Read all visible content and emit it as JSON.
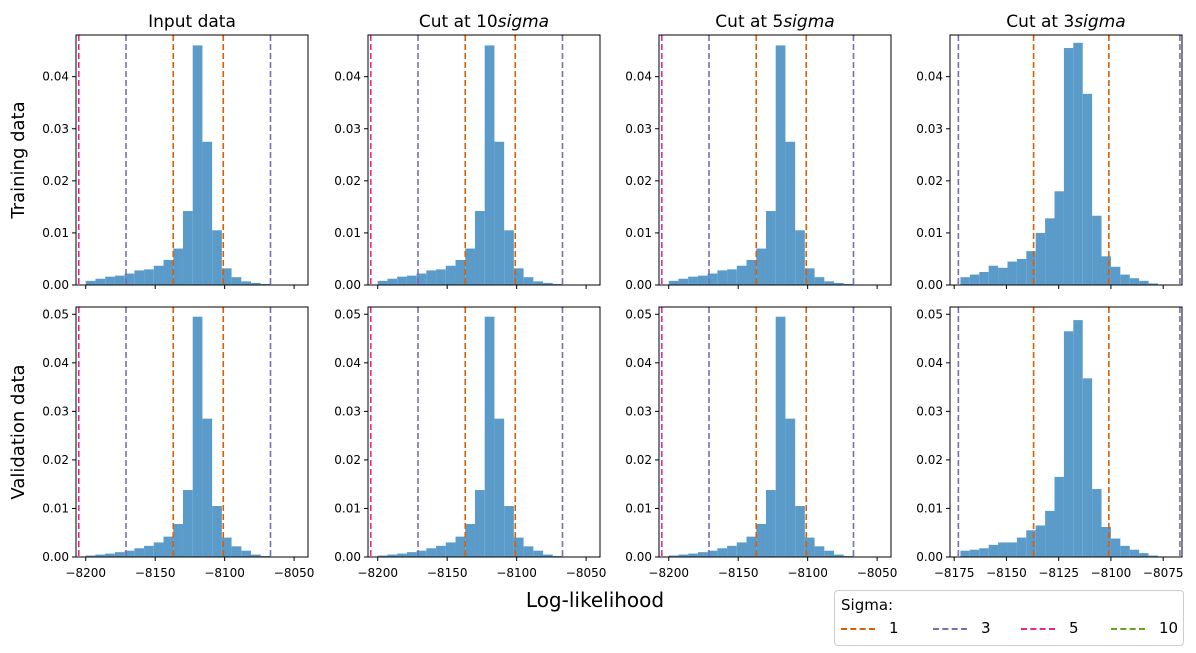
{
  "figure": {
    "xlabel": "Log-likelihood",
    "row_labels": [
      "Training data",
      "Validation data"
    ],
    "col_titles": [
      "Input data",
      "Cut at 10",
      "Cut at 5",
      "Cut at 3"
    ],
    "col_title_suffix": "sigma",
    "colors": {
      "bar": "#5b9bc9",
      "sigma1": "#d95f02",
      "sigma3": "#7570b3",
      "sigma5": "#e7298a",
      "sigma10": "#66a61e"
    }
  },
  "legend": {
    "title": "Sigma:",
    "items": [
      {
        "label": "1",
        "color": "#d95f02"
      },
      {
        "label": "3",
        "color": "#7570b3"
      },
      {
        "label": "5",
        "color": "#e7298a"
      },
      {
        "label": "10",
        "color": "#66a61e"
      }
    ]
  },
  "chart_data": [
    {
      "type": "bar",
      "title": "Input data",
      "ylabel": "Training data",
      "xlim": [
        -8207,
        -8040
      ],
      "ylim": [
        0,
        0.048
      ],
      "xticks": [
        -8200,
        -8150,
        -8100,
        -8050
      ],
      "yticks": [
        0,
        0.01,
        0.02,
        0.03,
        0.04
      ],
      "bins": [
        [
          -8200,
          -8193,
          0.0008
        ],
        [
          -8193,
          -8186,
          0.0012
        ],
        [
          -8186,
          -8179,
          0.0016
        ],
        [
          -8179,
          -8172,
          0.0018
        ],
        [
          -8172,
          -8165,
          0.0022
        ],
        [
          -8165,
          -8158,
          0.0028
        ],
        [
          -8158,
          -8151,
          0.003
        ],
        [
          -8151,
          -8144,
          0.0037
        ],
        [
          -8144,
          -8137,
          0.0048
        ],
        [
          -8137,
          -8130,
          0.007
        ],
        [
          -8130,
          -8123,
          0.0142
        ],
        [
          -8123,
          -8116,
          0.046
        ],
        [
          -8116,
          -8109,
          0.0275
        ],
        [
          -8109,
          -8102,
          0.0105
        ],
        [
          -8102,
          -8095,
          0.0032
        ],
        [
          -8095,
          -8088,
          0.0015
        ],
        [
          -8088,
          -8081,
          0.0007
        ],
        [
          -8081,
          -8074,
          0.0004
        ],
        [
          -8074,
          -8067,
          0.0002
        ]
      ],
      "sigma_lines": {
        "1": [
          -8137,
          -8101
        ],
        "3": [
          -8171,
          -8067
        ],
        "5": [
          -8205
        ],
        "10": []
      }
    },
    {
      "type": "bar",
      "title": "Cut at 10sigma",
      "xlim": [
        -8207,
        -8040
      ],
      "ylim": [
        0,
        0.048
      ],
      "xticks": [
        -8200,
        -8150,
        -8100,
        -8050
      ],
      "yticks": [
        0,
        0.01,
        0.02,
        0.03,
        0.04
      ],
      "bins": [
        [
          -8200,
          -8193,
          0.0008
        ],
        [
          -8193,
          -8186,
          0.0012
        ],
        [
          -8186,
          -8179,
          0.0016
        ],
        [
          -8179,
          -8172,
          0.0018
        ],
        [
          -8172,
          -8165,
          0.0022
        ],
        [
          -8165,
          -8158,
          0.0028
        ],
        [
          -8158,
          -8151,
          0.003
        ],
        [
          -8151,
          -8144,
          0.0037
        ],
        [
          -8144,
          -8137,
          0.0048
        ],
        [
          -8137,
          -8130,
          0.007
        ],
        [
          -8130,
          -8123,
          0.0142
        ],
        [
          -8123,
          -8116,
          0.046
        ],
        [
          -8116,
          -8109,
          0.0275
        ],
        [
          -8109,
          -8102,
          0.0105
        ],
        [
          -8102,
          -8095,
          0.0032
        ],
        [
          -8095,
          -8088,
          0.0015
        ],
        [
          -8088,
          -8081,
          0.0007
        ],
        [
          -8081,
          -8074,
          0.0004
        ],
        [
          -8074,
          -8067,
          0.0002
        ]
      ],
      "sigma_lines": {
        "1": [
          -8137,
          -8101
        ],
        "3": [
          -8171,
          -8067
        ],
        "5": [
          -8205
        ],
        "10": []
      }
    },
    {
      "type": "bar",
      "title": "Cut at 5sigma",
      "xlim": [
        -8207,
        -8040
      ],
      "ylim": [
        0,
        0.048
      ],
      "xticks": [
        -8200,
        -8150,
        -8100,
        -8050
      ],
      "yticks": [
        0,
        0.01,
        0.02,
        0.03,
        0.04
      ],
      "bins": [
        [
          -8200,
          -8193,
          0.0008
        ],
        [
          -8193,
          -8186,
          0.0012
        ],
        [
          -8186,
          -8179,
          0.0016
        ],
        [
          -8179,
          -8172,
          0.0018
        ],
        [
          -8172,
          -8165,
          0.0022
        ],
        [
          -8165,
          -8158,
          0.0028
        ],
        [
          -8158,
          -8151,
          0.003
        ],
        [
          -8151,
          -8144,
          0.0037
        ],
        [
          -8144,
          -8137,
          0.0048
        ],
        [
          -8137,
          -8130,
          0.007
        ],
        [
          -8130,
          -8123,
          0.0142
        ],
        [
          -8123,
          -8116,
          0.046
        ],
        [
          -8116,
          -8109,
          0.0275
        ],
        [
          -8109,
          -8102,
          0.0105
        ],
        [
          -8102,
          -8095,
          0.0032
        ],
        [
          -8095,
          -8088,
          0.0015
        ],
        [
          -8088,
          -8081,
          0.0007
        ],
        [
          -8081,
          -8074,
          0.0004
        ],
        [
          -8074,
          -8067,
          0.0002
        ]
      ],
      "sigma_lines": {
        "1": [
          -8137,
          -8101
        ],
        "3": [
          -8171,
          -8067
        ],
        "5": [
          -8205
        ],
        "10": []
      }
    },
    {
      "type": "bar",
      "title": "Cut at 3sigma",
      "xlim": [
        -8177,
        -8066
      ],
      "ylim": [
        0,
        0.048
      ],
      "xticks": [
        -8175,
        -8150,
        -8125,
        -8100,
        -8075
      ],
      "yticks": [
        0,
        0.01,
        0.02,
        0.03,
        0.04
      ],
      "bins": [
        [
          -8172,
          -8167.5,
          0.0015
        ],
        [
          -8167.5,
          -8163,
          0.002
        ],
        [
          -8163,
          -8158.5,
          0.0025
        ],
        [
          -8158.5,
          -8154,
          0.0037
        ],
        [
          -8154,
          -8149.5,
          0.0033
        ],
        [
          -8149.5,
          -8145,
          0.0045
        ],
        [
          -8145,
          -8140.5,
          0.005
        ],
        [
          -8140.5,
          -8136,
          0.0065
        ],
        [
          -8136,
          -8131.5,
          0.01
        ],
        [
          -8131.5,
          -8127,
          0.0128
        ],
        [
          -8127,
          -8122.5,
          0.018
        ],
        [
          -8122.5,
          -8118,
          0.0455
        ],
        [
          -8118,
          -8113.5,
          0.0465
        ],
        [
          -8113.5,
          -8109,
          0.0367
        ],
        [
          -8109,
          -8104.5,
          0.0133
        ],
        [
          -8104.5,
          -8100,
          0.0055
        ],
        [
          -8100,
          -8095.5,
          0.0035
        ],
        [
          -8095.5,
          -8091,
          0.002
        ],
        [
          -8091,
          -8086.5,
          0.0013
        ],
        [
          -8086.5,
          -8082,
          0.0008
        ],
        [
          -8082,
          -8077.5,
          0.0003
        ]
      ],
      "sigma_lines": {
        "1": [
          -8137,
          -8101
        ],
        "3": [
          -8173,
          -8067
        ],
        "5": [],
        "10": []
      }
    },
    {
      "type": "bar",
      "title": "Input data",
      "ylabel": "Validation data",
      "xlim": [
        -8207,
        -8040
      ],
      "ylim": [
        0,
        0.0515
      ],
      "xticks": [
        -8200,
        -8150,
        -8100,
        -8050
      ],
      "yticks": [
        0,
        0.01,
        0.02,
        0.03,
        0.04,
        0.05
      ],
      "bins": [
        [
          -8200,
          -8193,
          0.0003
        ],
        [
          -8193,
          -8186,
          0.0005
        ],
        [
          -8186,
          -8179,
          0.0007
        ],
        [
          -8179,
          -8172,
          0.001
        ],
        [
          -8172,
          -8165,
          0.0013
        ],
        [
          -8165,
          -8158,
          0.0018
        ],
        [
          -8158,
          -8151,
          0.0023
        ],
        [
          -8151,
          -8144,
          0.003
        ],
        [
          -8144,
          -8137,
          0.0042
        ],
        [
          -8137,
          -8130,
          0.0068
        ],
        [
          -8130,
          -8123,
          0.0138
        ],
        [
          -8123,
          -8116,
          0.0495
        ],
        [
          -8116,
          -8109,
          0.0285
        ],
        [
          -8109,
          -8102,
          0.0105
        ],
        [
          -8102,
          -8095,
          0.004
        ],
        [
          -8095,
          -8088,
          0.0022
        ],
        [
          -8088,
          -8081,
          0.0013
        ],
        [
          -8081,
          -8074,
          0.0005
        ],
        [
          -8074,
          -8067,
          0.0002
        ]
      ],
      "sigma_lines": {
        "1": [
          -8137,
          -8101
        ],
        "3": [
          -8171,
          -8067
        ],
        "5": [
          -8205
        ],
        "10": []
      }
    },
    {
      "type": "bar",
      "title": "",
      "xlim": [
        -8207,
        -8040
      ],
      "ylim": [
        0,
        0.0515
      ],
      "xticks": [
        -8200,
        -8150,
        -8100,
        -8050
      ],
      "yticks": [
        0,
        0.01,
        0.02,
        0.03,
        0.04,
        0.05
      ],
      "bins": [
        [
          -8200,
          -8193,
          0.0003
        ],
        [
          -8193,
          -8186,
          0.0005
        ],
        [
          -8186,
          -8179,
          0.0007
        ],
        [
          -8179,
          -8172,
          0.001
        ],
        [
          -8172,
          -8165,
          0.0013
        ],
        [
          -8165,
          -8158,
          0.0018
        ],
        [
          -8158,
          -8151,
          0.0023
        ],
        [
          -8151,
          -8144,
          0.003
        ],
        [
          -8144,
          -8137,
          0.0042
        ],
        [
          -8137,
          -8130,
          0.0068
        ],
        [
          -8130,
          -8123,
          0.0138
        ],
        [
          -8123,
          -8116,
          0.0495
        ],
        [
          -8116,
          -8109,
          0.0285
        ],
        [
          -8109,
          -8102,
          0.0105
        ],
        [
          -8102,
          -8095,
          0.004
        ],
        [
          -8095,
          -8088,
          0.0022
        ],
        [
          -8088,
          -8081,
          0.0013
        ],
        [
          -8081,
          -8074,
          0.0005
        ],
        [
          -8074,
          -8067,
          0.0002
        ]
      ],
      "sigma_lines": {
        "1": [
          -8137,
          -8101
        ],
        "3": [
          -8171,
          -8067
        ],
        "5": [
          -8205
        ],
        "10": []
      }
    },
    {
      "type": "bar",
      "title": "",
      "xlim": [
        -8207,
        -8040
      ],
      "ylim": [
        0,
        0.0515
      ],
      "xticks": [
        -8200,
        -8150,
        -8100,
        -8050
      ],
      "yticks": [
        0,
        0.01,
        0.02,
        0.03,
        0.04,
        0.05
      ],
      "bins": [
        [
          -8200,
          -8193,
          0.0003
        ],
        [
          -8193,
          -8186,
          0.0005
        ],
        [
          -8186,
          -8179,
          0.0007
        ],
        [
          -8179,
          -8172,
          0.001
        ],
        [
          -8172,
          -8165,
          0.0013
        ],
        [
          -8165,
          -8158,
          0.0018
        ],
        [
          -8158,
          -8151,
          0.0023
        ],
        [
          -8151,
          -8144,
          0.003
        ],
        [
          -8144,
          -8137,
          0.0042
        ],
        [
          -8137,
          -8130,
          0.0068
        ],
        [
          -8130,
          -8123,
          0.0138
        ],
        [
          -8123,
          -8116,
          0.0495
        ],
        [
          -8116,
          -8109,
          0.0285
        ],
        [
          -8109,
          -8102,
          0.0105
        ],
        [
          -8102,
          -8095,
          0.004
        ],
        [
          -8095,
          -8088,
          0.0022
        ],
        [
          -8088,
          -8081,
          0.0013
        ],
        [
          -8081,
          -8074,
          0.0005
        ],
        [
          -8074,
          -8067,
          0.0002
        ]
      ],
      "sigma_lines": {
        "1": [
          -8137,
          -8101
        ],
        "3": [
          -8171,
          -8067
        ],
        "5": [
          -8205
        ],
        "10": []
      }
    },
    {
      "type": "bar",
      "title": "",
      "xlim": [
        -8177,
        -8066
      ],
      "ylim": [
        0,
        0.0515
      ],
      "xticks": [
        -8175,
        -8150,
        -8125,
        -8100,
        -8075
      ],
      "yticks": [
        0,
        0.01,
        0.02,
        0.03,
        0.04,
        0.05
      ],
      "bins": [
        [
          -8172,
          -8167.5,
          0.0013
        ],
        [
          -8167.5,
          -8163,
          0.0015
        ],
        [
          -8163,
          -8158.5,
          0.0018
        ],
        [
          -8158.5,
          -8154,
          0.0025
        ],
        [
          -8154,
          -8149.5,
          0.003
        ],
        [
          -8149.5,
          -8145,
          0.003
        ],
        [
          -8145,
          -8140.5,
          0.004
        ],
        [
          -8140.5,
          -8136,
          0.0055
        ],
        [
          -8136,
          -8131.5,
          0.0065
        ],
        [
          -8131.5,
          -8127,
          0.0095
        ],
        [
          -8127,
          -8122.5,
          0.0165
        ],
        [
          -8122.5,
          -8118,
          0.0465
        ],
        [
          -8118,
          -8113.5,
          0.0488
        ],
        [
          -8113.5,
          -8109,
          0.0368
        ],
        [
          -8109,
          -8104.5,
          0.014
        ],
        [
          -8104.5,
          -8100,
          0.0062
        ],
        [
          -8100,
          -8095.5,
          0.0038
        ],
        [
          -8095.5,
          -8091,
          0.0023
        ],
        [
          -8091,
          -8086.5,
          0.0015
        ],
        [
          -8086.5,
          -8082,
          0.0008
        ],
        [
          -8082,
          -8077.5,
          0.0003
        ]
      ],
      "sigma_lines": {
        "1": [
          -8137,
          -8101
        ],
        "3": [
          -8173,
          -8067
        ],
        "5": [],
        "10": []
      }
    }
  ]
}
